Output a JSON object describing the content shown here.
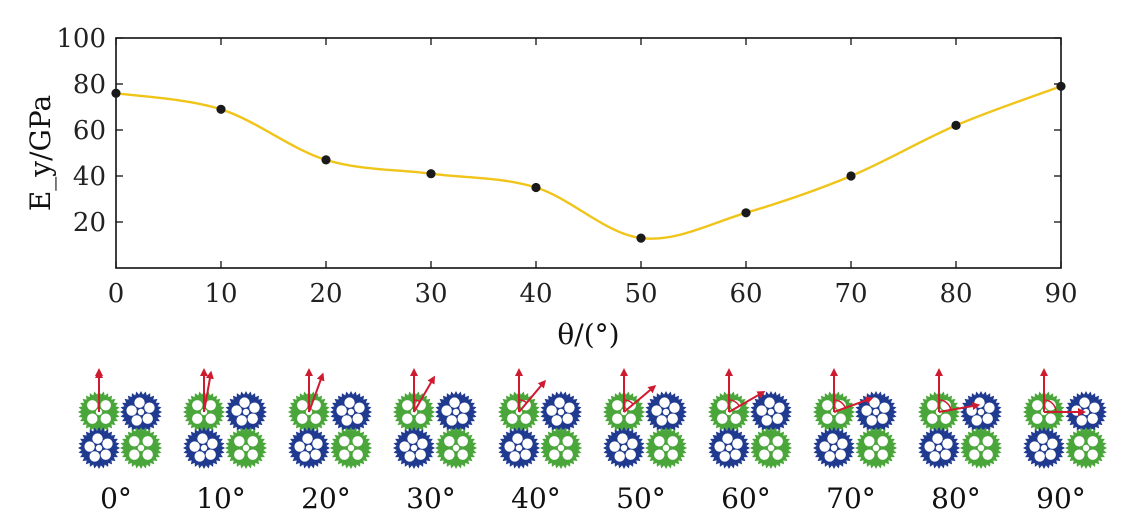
{
  "chart_data": {
    "type": "line",
    "xlabel": "θ/(°)",
    "ylabel": "E_y/GPa",
    "xlim": [
      0,
      90
    ],
    "ylim": [
      0,
      100
    ],
    "x_ticks": [
      0,
      10,
      20,
      30,
      40,
      50,
      60,
      70,
      80,
      90
    ],
    "y_ticks": [
      20,
      40,
      60,
      80,
      100
    ],
    "grid": false,
    "series": [
      {
        "x": [
          0,
          10,
          20,
          30,
          40,
          50,
          60,
          70,
          80,
          90
        ],
        "values": [
          76,
          69,
          47,
          41,
          35,
          13,
          24,
          40,
          62,
          79
        ],
        "line_color": "#f0c419",
        "marker_color": "#1a1a1a"
      }
    ]
  },
  "gear_row": {
    "angles": [
      0,
      10,
      20,
      30,
      40,
      50,
      60,
      70,
      80,
      90
    ],
    "labels": [
      "0°",
      "10°",
      "20°",
      "30°",
      "40°",
      "50°",
      "60°",
      "70°",
      "80°",
      "90°"
    ],
    "green": "#4aa63a",
    "blue": "#1f3a8f",
    "arrow_color": "#d01a30"
  }
}
